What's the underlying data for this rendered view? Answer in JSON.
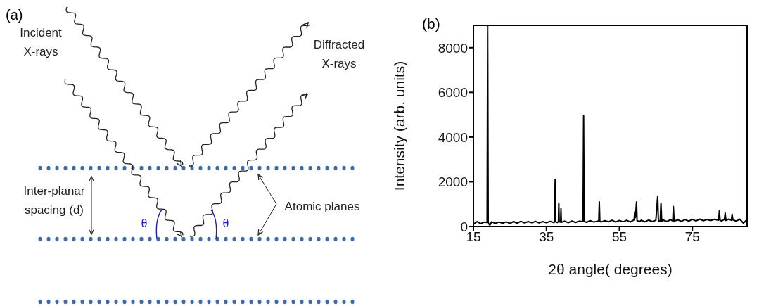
{
  "chart_data": [
    {
      "type": "other",
      "title": "(a)",
      "annotations": [
        "Incident X-rays",
        "Diffracted X-rays",
        "Inter-planar spacing (d)",
        "Atomic planes",
        "θ",
        "θ"
      ]
    },
    {
      "type": "line",
      "title": "(b)",
      "xlabel": "2θ angle( degrees)",
      "ylabel": "Intensity (arb. units)",
      "xlim": [
        15,
        90
      ],
      "xticks": [
        15,
        35,
        55,
        75
      ],
      "ylim": [
        0,
        9000
      ],
      "yticks": [
        0,
        2000,
        4000,
        6000,
        8000
      ],
      "x": [
        15,
        16,
        17,
        18,
        18.75,
        18.9,
        19.05,
        19.5,
        20,
        21,
        22,
        23,
        24,
        25,
        26,
        27,
        28,
        29,
        30,
        31,
        32,
        33,
        34,
        35,
        36,
        37,
        37.25,
        37.4,
        37.55,
        38,
        38.3,
        38.4,
        38.5,
        38.9,
        39.0,
        39.1,
        40,
        41,
        42,
        43,
        44,
        45.05,
        45.2,
        45.35,
        46,
        47,
        48,
        49.35,
        49.5,
        49.65,
        50,
        51,
        52,
        53,
        54,
        55,
        56,
        57,
        58,
        59.05,
        59.2,
        59.4,
        59.7,
        59.85,
        60.5,
        61,
        62,
        63,
        64,
        65,
        65.5,
        65.7,
        66.2,
        66.4,
        66.6,
        67,
        68,
        69,
        69.65,
        69.8,
        70,
        71,
        72,
        73,
        74,
        75,
        76,
        77,
        78,
        79,
        80,
        81,
        82.2,
        82.4,
        82.6,
        83,
        83.8,
        84.0,
        84.2,
        85,
        85.7,
        85.9,
        86.1,
        87,
        88,
        89,
        90
      ],
      "series": [
        {
          "color": "#000000",
          "values": [
            100,
            220,
            130,
            200,
            180,
            9000,
            170,
            60,
            210,
            140,
            200,
            150,
            210,
            140,
            220,
            150,
            230,
            160,
            220,
            170,
            230,
            160,
            220,
            170,
            230,
            180,
            200,
            2100,
            220,
            180,
            220,
            1050,
            210,
            200,
            800,
            190,
            240,
            170,
            250,
            180,
            240,
            220,
            4950,
            230,
            190,
            260,
            200,
            250,
            1100,
            240,
            200,
            260,
            210,
            280,
            200,
            270,
            210,
            280,
            200,
            300,
            650,
            400,
            1100,
            260,
            220,
            280,
            210,
            290,
            220,
            280,
            1350,
            230,
            260,
            1050,
            240,
            290,
            220,
            300,
            250,
            900,
            240,
            300,
            230,
            310,
            240,
            320,
            250,
            330,
            260,
            310,
            270,
            320,
            280,
            700,
            290,
            250,
            320,
            600,
            270,
            330,
            280,
            550,
            300,
            240,
            330,
            150,
            320
          ]
        }
      ]
    }
  ]
}
